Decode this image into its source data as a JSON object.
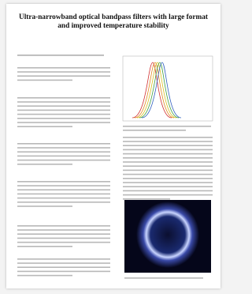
{
  "header": {
    "title": "Ultra-narrowband optical bandpass filters with large format and improved temperature stability"
  }
}
